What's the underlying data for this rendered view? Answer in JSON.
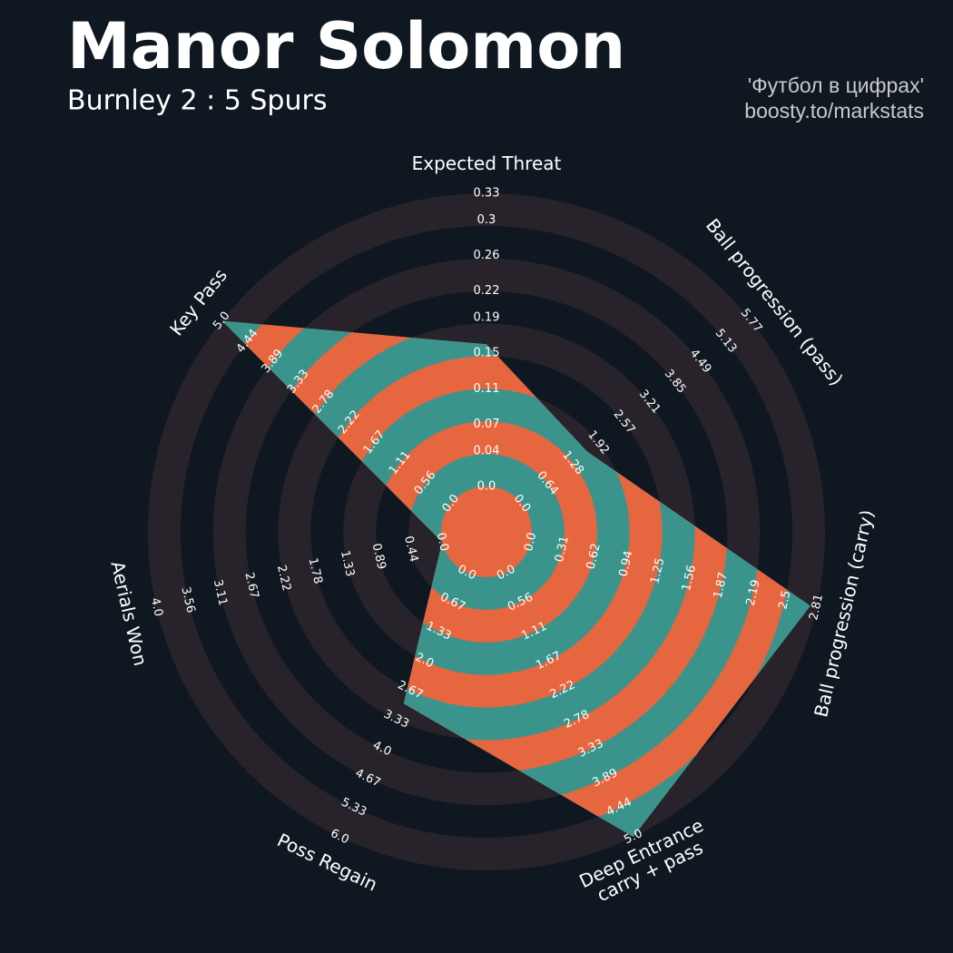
{
  "chart_data": {
    "type": "radar",
    "title": "Manor Solomon",
    "subtitle": "Burnley 2 : 5 Spurs",
    "credits": [
      "'Футбол в цифрах'",
      "boosty.to/markstats"
    ],
    "params": [
      {
        "label": [
          "Expected Threat"
        ],
        "range": [
          0,
          0.33
        ],
        "ticks": [
          {
            "value": 0,
            "label": "0.0"
          },
          0.04,
          0.07,
          0.11,
          0.15,
          0.19,
          0.22,
          0.26,
          0.3,
          0.33
        ]
      },
      {
        "label": [
          "Ball progression (pass)"
        ],
        "range": [
          0,
          5.77
        ],
        "ticks": [
          {
            "value": 0,
            "label": "0.0"
          },
          0.64,
          1.28,
          1.92,
          2.57,
          3.21,
          3.85,
          4.49,
          5.13,
          5.77
        ]
      },
      {
        "label": [
          "Ball progression (carry)"
        ],
        "range": [
          0,
          2.81
        ],
        "ticks": [
          {
            "value": 0,
            "label": "0.0"
          },
          0.31,
          0.62,
          0.94,
          1.25,
          1.56,
          1.87,
          2.19,
          2.5,
          2.81
        ]
      },
      {
        "label": [
          "Deep Entrance",
          "carry + pass"
        ],
        "range": [
          0,
          5
        ],
        "ticks": [
          {
            "value": 0,
            "label": "0.0"
          },
          0.56,
          1.11,
          1.67,
          2.22,
          2.78,
          3.33,
          3.89,
          4.44,
          {
            "value": 5,
            "label": "5.0"
          }
        ]
      },
      {
        "label": [
          "Poss Regain"
        ],
        "range": [
          0,
          6
        ],
        "ticks": [
          {
            "value": 0,
            "label": "0.0"
          },
          0.67,
          1.33,
          {
            "value": 2,
            "label": "2.0"
          },
          2.67,
          3.33,
          {
            "value": 4,
            "label": "4.0"
          },
          4.67,
          5.33,
          {
            "value": 6,
            "label": "6.0"
          }
        ]
      },
      {
        "label": [
          "Aerials Won"
        ],
        "range": [
          0,
          4
        ],
        "ticks": [
          {
            "value": 0,
            "label": "0.0"
          },
          0.44,
          0.89,
          1.33,
          1.78,
          2.22,
          2.67,
          3.11,
          3.56,
          {
            "value": 4,
            "label": "4.0"
          }
        ]
      },
      {
        "label": [
          "Key Pass"
        ],
        "range": [
          0,
          5
        ],
        "ticks": [
          {
            "value": 0,
            "label": "0.0"
          },
          0.56,
          1.11,
          1.67,
          2.22,
          2.78,
          3.33,
          3.89,
          4.44,
          {
            "value": 5,
            "label": "5.0"
          }
        ]
      }
    ],
    "values": [
      0.16,
      1.64,
      2.75,
      5,
      2.97,
      0,
      5
    ],
    "ring_colors": [
      "#28232a",
      "#0f1820"
    ],
    "fill_colors": [
      "#3b948c",
      "#e5663f"
    ]
  }
}
